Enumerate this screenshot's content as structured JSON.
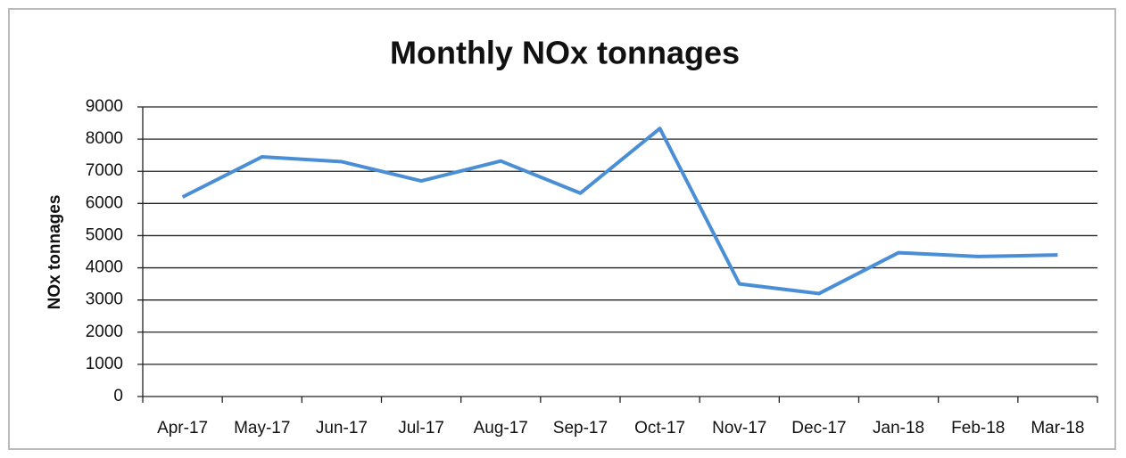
{
  "chart_data": {
    "type": "line",
    "title": "Monthly NOx tonnages",
    "y_label": "NOx tonnages",
    "categories": [
      "Apr-17",
      "May-17",
      "Jun-17",
      "Jul-17",
      "Aug-17",
      "Sep-17",
      "Oct-17",
      "Nov-17",
      "Dec-17",
      "Jan-18",
      "Feb-18",
      "Mar-18"
    ],
    "values": [
      6200,
      7450,
      7300,
      6700,
      7320,
      6320,
      8330,
      3500,
      3200,
      4470,
      4350,
      4400
    ],
    "color": "#4a8fd6",
    "ylim": [
      0,
      9000
    ],
    "yticks": [
      0,
      1000,
      2000,
      3000,
      4000,
      5000,
      6000,
      7000,
      8000,
      9000
    ],
    "grid": true
  }
}
